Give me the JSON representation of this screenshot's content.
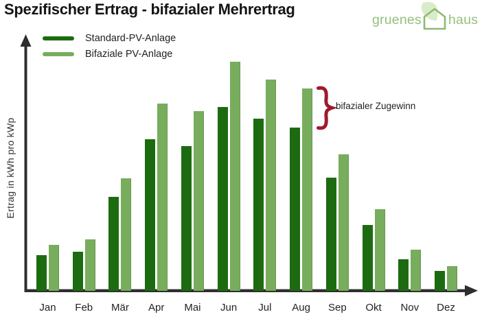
{
  "title": "Spezifischer Ertrag - bifazialer Mehrertrag",
  "logo": {
    "word1": "gruenes",
    "word2": "haus"
  },
  "legend": [
    {
      "label": "Standard-PV-Anlage"
    },
    {
      "label": "Bifaziale PV-Anlage"
    }
  ],
  "ylabel": "Ertrag in kWh pro kWp",
  "annotation": {
    "text": "bifazialer Zugewinn"
  },
  "colors": {
    "standard_green": "#1d6b10",
    "bifazial_green": "#77ad5d",
    "axis": "#2e2e2e",
    "title_text": "#141414",
    "body_text": "#222222",
    "brace_red": "#9e1b2b",
    "logo_green": "#95bf7c",
    "leaf_fill": "#d9ecca",
    "house_stroke": "#8cba70"
  },
  "chart_data": {
    "type": "bar",
    "title": "Spezifischer Ertrag - bifazialer Mehrertrag",
    "xlabel": "",
    "ylabel": "Ertrag in kWh pro kWp",
    "units": "relative yield, y-axis unlabeled; values scaled so June bifacial = 100",
    "categories": [
      "Jan",
      "Feb",
      "Mär",
      "Apr",
      "Mai",
      "Jun",
      "Jul",
      "Aug",
      "Sep",
      "Okt",
      "Nov",
      "Dez"
    ],
    "series": [
      {
        "name": "Standard-PV-Anlage",
        "color": "#1d6b10",
        "values": [
          15.5,
          16.8,
          41,
          66,
          63,
          80,
          75,
          71,
          49.3,
          28.7,
          13.5,
          8.4
        ]
      },
      {
        "name": "Bifaziale PV-Anlage",
        "color": "#77ad5d",
        "values": [
          20,
          22.2,
          49,
          81.5,
          78.3,
          100,
          92,
          88.2,
          59.4,
          35.6,
          17.7,
          10.7
        ]
      }
    ],
    "ylim": [
      0,
      105
    ],
    "grid": false,
    "legend_position": "top-left",
    "annotation": "bifazialer Zugewinn (brace over Aug bifacial bar)"
  }
}
